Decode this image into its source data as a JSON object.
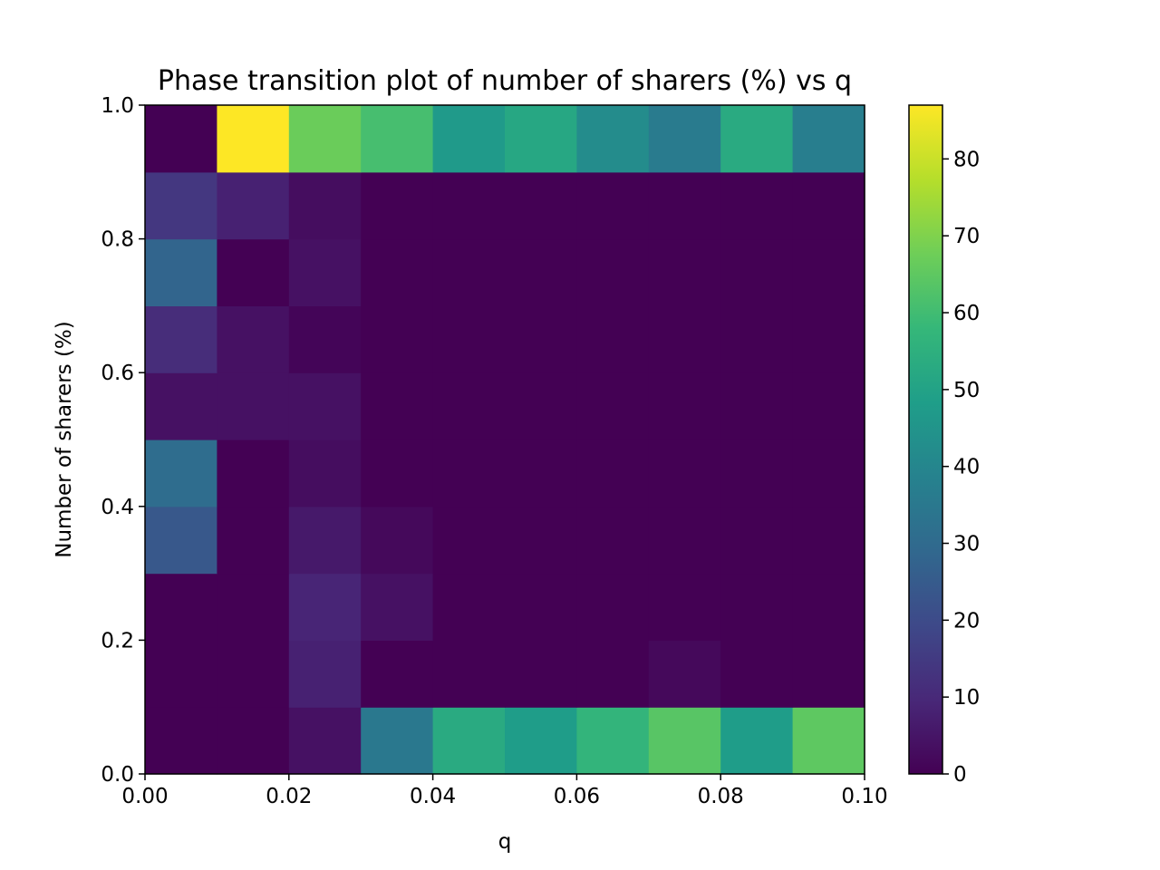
{
  "chart_data": {
    "type": "heatmap",
    "title": "Phase transition plot of number of sharers (%) vs q",
    "xlabel": "q",
    "ylabel": "Number of sharers (%)",
    "xlim": [
      0.0,
      0.1
    ],
    "ylim": [
      0.0,
      1.0
    ],
    "x_ticks": [
      "0.00",
      "0.02",
      "0.04",
      "0.06",
      "0.08",
      "0.10"
    ],
    "y_ticks": [
      "0.0",
      "0.2",
      "0.4",
      "0.6",
      "0.8",
      "1.0"
    ],
    "colorbar": {
      "colormap": "viridis",
      "range": [
        0,
        87
      ],
      "ticks": [
        "0",
        "10",
        "20",
        "30",
        "40",
        "50",
        "60",
        "70",
        "80"
      ]
    },
    "grid": false,
    "x_bin_edges": [
      0.0,
      0.01,
      0.02,
      0.03,
      0.04,
      0.05,
      0.06,
      0.07,
      0.08,
      0.09,
      0.1
    ],
    "y_bin_edges": [
      0.0,
      0.1,
      0.2,
      0.3,
      0.4,
      0.5,
      0.6,
      0.7,
      0.8,
      0.9,
      1.0
    ],
    "values_rows_from_bottom": [
      [
        0,
        0,
        4,
        35,
        53,
        48,
        57,
        64,
        48,
        65
      ],
      [
        0,
        0,
        8,
        0,
        0,
        0,
        0,
        2,
        0,
        0
      ],
      [
        0,
        0,
        9,
        4,
        0,
        0,
        0,
        0,
        0,
        0
      ],
      [
        24,
        0,
        6,
        2,
        0,
        0,
        0,
        0,
        0,
        0
      ],
      [
        31,
        0,
        3,
        0,
        0,
        0,
        0,
        0,
        0,
        0
      ],
      [
        4,
        4,
        4,
        0,
        0,
        0,
        0,
        0,
        0,
        0
      ],
      [
        11,
        4,
        1,
        0,
        0,
        0,
        0,
        0,
        0,
        0
      ],
      [
        28,
        0,
        4,
        0,
        0,
        0,
        0,
        0,
        0,
        0
      ],
      [
        14,
        8,
        3,
        0,
        0,
        0,
        0,
        0,
        0,
        0
      ],
      [
        0,
        87,
        67,
        61,
        47,
        52,
        42,
        36,
        53,
        37
      ]
    ]
  }
}
